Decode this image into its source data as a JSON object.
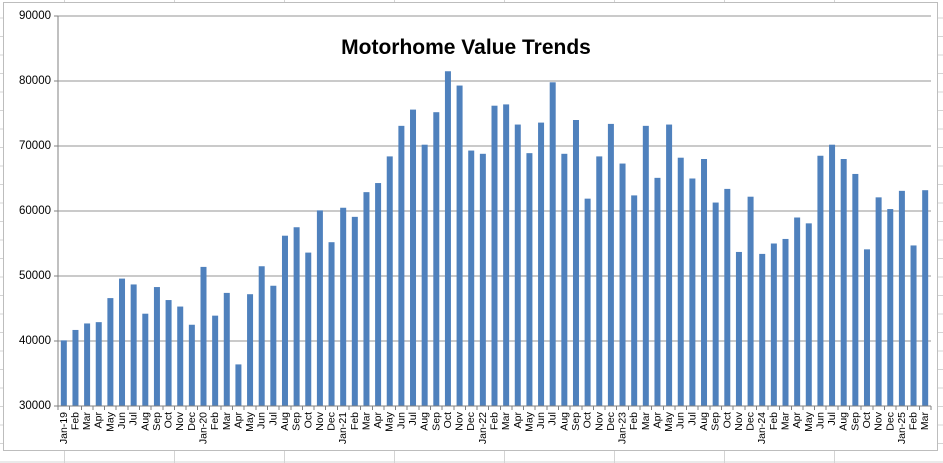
{
  "chart_data": {
    "type": "bar",
    "title": "Motorhome Value Trends",
    "xlabel": "",
    "ylabel": "",
    "legend": "none",
    "grid": "horizontal",
    "ylim": [
      30000,
      90000
    ],
    "ytick_step": 10000,
    "ytick_labels": [
      "30000",
      "40000",
      "50000",
      "60000",
      "70000",
      "80000",
      "90000"
    ],
    "categories": [
      "Jan-19",
      "Feb",
      "Mar",
      "Apr",
      "May",
      "Jun",
      "Jul",
      "Aug",
      "Sep",
      "Oct",
      "Nov",
      "Dec",
      "Jan-20",
      "Feb",
      "Mar",
      "Apr",
      "May",
      "Jun",
      "Jul",
      "Aug",
      "Sep",
      "Oct",
      "Nov",
      "Dec",
      "Jan-21",
      "Feb",
      "Mar",
      "Apr",
      "May",
      "Jun",
      "Jul",
      "Aug",
      "Sep",
      "Oct",
      "Nov",
      "Dec",
      "Jan-22",
      "Feb",
      "Mar",
      "Apr",
      "May",
      "Jun",
      "Jul",
      "Aug",
      "Sep",
      "Oct",
      "Nov",
      "Dec",
      "Jan-23",
      "Feb",
      "Mar",
      "Apr",
      "May",
      "Jun",
      "Jul",
      "Aug",
      "Sep",
      "Oct",
      "Nov",
      "Dec",
      "Jan-24",
      "Feb",
      "Mar",
      "Apr",
      "May",
      "Jun",
      "Jul",
      "Aug",
      "Sep",
      "Oct",
      "Nov",
      "Dec",
      "Jan-25",
      "Feb",
      "Mar"
    ],
    "values": [
      40100,
      41700,
      42700,
      42900,
      46600,
      49600,
      48700,
      44200,
      48300,
      46300,
      45300,
      42500,
      51400,
      43900,
      47400,
      36400,
      47200,
      51500,
      48500,
      56200,
      57500,
      53600,
      60100,
      55200,
      60500,
      59100,
      62900,
      64300,
      68400,
      73100,
      75600,
      70200,
      75200,
      81500,
      79300,
      69300,
      68800,
      76200,
      76400,
      73300,
      68900,
      73600,
      79800,
      68800,
      74000,
      61900,
      68400,
      73400,
      67300,
      62400,
      73100,
      65100,
      73300,
      68200,
      65000,
      68000,
      61300,
      63400,
      53700,
      62200,
      53400,
      55000,
      55700,
      59000,
      58100,
      68500,
      70200,
      68000,
      65700,
      54100,
      62100,
      60300,
      63100,
      54700,
      63200
    ],
    "colors": {
      "bar": "#4f81bd",
      "gridline": "#969696",
      "axis": "#808080",
      "title": "#000000",
      "tick_label": "#000000",
      "chart_border": "#bdbdbd",
      "sheet_gridline": "#d4d4d4",
      "background": "#ffffff"
    }
  }
}
